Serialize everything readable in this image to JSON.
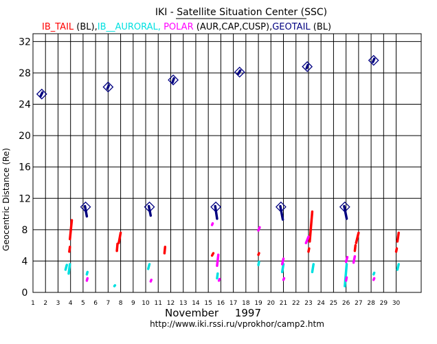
{
  "chart_data": {
    "type": "scatter",
    "title": "IKI - Satellite Situation Center (SSC)",
    "legend": [
      {
        "label": "IB_TAIL",
        "color": "#ff0000"
      },
      {
        "label": " (BL),",
        "color": "#000000"
      },
      {
        "label": "IB__AURORAL,",
        "color": "#00e0e0"
      },
      {
        "label": " POLAR",
        "color": "#ff00ff"
      },
      {
        "label": " (AUR,CAP,CUSP),",
        "color": "#000000"
      },
      {
        "label": "GEOTAIL",
        "color": "#000080"
      },
      {
        "label": " (BL)",
        "color": "#000000"
      }
    ],
    "ylabel": "Geocentric Distance (Re)",
    "xlabel": "November     1997",
    "url": "http://www.iki.rssi.ru/vprokhor/camp2.htm",
    "xlim": [
      1,
      32
    ],
    "ylim": [
      0,
      33
    ],
    "yticks": [
      0,
      4,
      8,
      12,
      16,
      20,
      24,
      28,
      32
    ],
    "xticks": [
      1,
      2,
      3,
      4,
      5,
      6,
      7,
      8,
      9,
      10,
      11,
      12,
      13,
      14,
      15,
      16,
      17,
      18,
      19,
      20,
      21,
      22,
      23,
      24,
      25,
      26,
      27,
      28,
      29,
      30
    ],
    "series": [
      {
        "name": "IB_TAIL",
        "color": "#ff0000",
        "segments": [
          [
            3.9,
            5.2,
            3.95,
            5.8
          ],
          [
            3.95,
            6.8,
            4.1,
            9.2
          ],
          [
            7.7,
            5.3,
            7.75,
            6.2
          ],
          [
            7.85,
            6.3,
            8.0,
            7.6
          ],
          [
            11.5,
            5.0,
            11.55,
            5.8
          ],
          [
            15.3,
            4.7,
            15.4,
            5.0
          ],
          [
            19.0,
            4.8,
            19.05,
            5.0
          ],
          [
            23.0,
            5.2,
            23.05,
            5.6
          ],
          [
            23.1,
            6.5,
            23.3,
            10.3
          ],
          [
            26.7,
            5.3,
            26.75,
            6.0
          ],
          [
            26.8,
            6.3,
            27.0,
            7.6
          ],
          [
            30.0,
            5.2,
            30.05,
            5.6
          ],
          [
            30.1,
            6.5,
            30.2,
            7.6
          ]
        ]
      },
      {
        "name": "IB__AURORAL",
        "color": "#00e0e0",
        "segments": [
          [
            3.6,
            2.9,
            3.7,
            3.5
          ],
          [
            3.85,
            2.4,
            3.95,
            3.6
          ],
          [
            5.3,
            2.3,
            5.35,
            2.6
          ],
          [
            7.5,
            0.8,
            7.55,
            0.9
          ],
          [
            10.2,
            3.0,
            10.3,
            3.6
          ],
          [
            15.7,
            1.8,
            15.75,
            2.4
          ],
          [
            19.0,
            3.5,
            19.05,
            3.9
          ],
          [
            20.9,
            2.6,
            21.0,
            3.6
          ],
          [
            23.3,
            2.6,
            23.4,
            3.6
          ],
          [
            25.9,
            0.8,
            26.05,
            3.6
          ],
          [
            28.2,
            2.3,
            28.25,
            2.5
          ],
          [
            30.1,
            2.9,
            30.2,
            3.6
          ]
        ]
      },
      {
        "name": "POLAR",
        "color": "#ff00ff",
        "segments": [
          [
            5.3,
            1.5,
            5.35,
            1.8
          ],
          [
            10.4,
            1.4,
            10.45,
            1.6
          ],
          [
            15.3,
            8.6,
            15.35,
            8.8
          ],
          [
            15.7,
            3.4,
            15.8,
            4.8
          ],
          [
            15.85,
            1.5,
            15.9,
            1.7
          ],
          [
            19.0,
            7.9,
            19.1,
            8.3
          ],
          [
            20.9,
            3.6,
            21.0,
            4.3
          ],
          [
            21.0,
            1.6,
            21.05,
            1.8
          ],
          [
            22.8,
            6.3,
            23.0,
            7.1
          ],
          [
            26.0,
            1.5,
            26.05,
            1.9
          ],
          [
            26.0,
            3.9,
            26.1,
            4.5
          ],
          [
            26.6,
            3.8,
            26.7,
            4.6
          ],
          [
            28.2,
            1.6,
            28.25,
            1.8
          ]
        ]
      },
      {
        "name": "GEOTAIL",
        "color": "#000080",
        "diamonds": [
          [
            1.7,
            25.3
          ],
          [
            7.0,
            26.2
          ],
          [
            12.2,
            27.1
          ],
          [
            17.5,
            28.1
          ],
          [
            22.9,
            28.8
          ],
          [
            28.2,
            29.6
          ],
          [
            5.2,
            10.9
          ],
          [
            10.3,
            10.9
          ],
          [
            15.6,
            10.9
          ],
          [
            20.8,
            10.9
          ],
          [
            25.9,
            10.9
          ]
        ],
        "segments": [
          [
            1.6,
            25.0,
            1.75,
            25.5
          ],
          [
            6.95,
            26.0,
            7.05,
            26.4
          ],
          [
            12.15,
            26.8,
            12.25,
            27.3
          ],
          [
            17.4,
            27.9,
            17.55,
            28.3
          ],
          [
            22.85,
            28.6,
            22.95,
            29.0
          ],
          [
            28.15,
            29.4,
            28.25,
            29.8
          ],
          [
            5.15,
            11.0,
            5.3,
            9.7
          ],
          [
            10.25,
            11.0,
            10.4,
            9.8
          ],
          [
            15.55,
            11.0,
            15.7,
            9.4
          ],
          [
            20.75,
            11.0,
            20.95,
            9.3
          ],
          [
            25.85,
            11.0,
            26.05,
            9.4
          ]
        ]
      }
    ]
  }
}
